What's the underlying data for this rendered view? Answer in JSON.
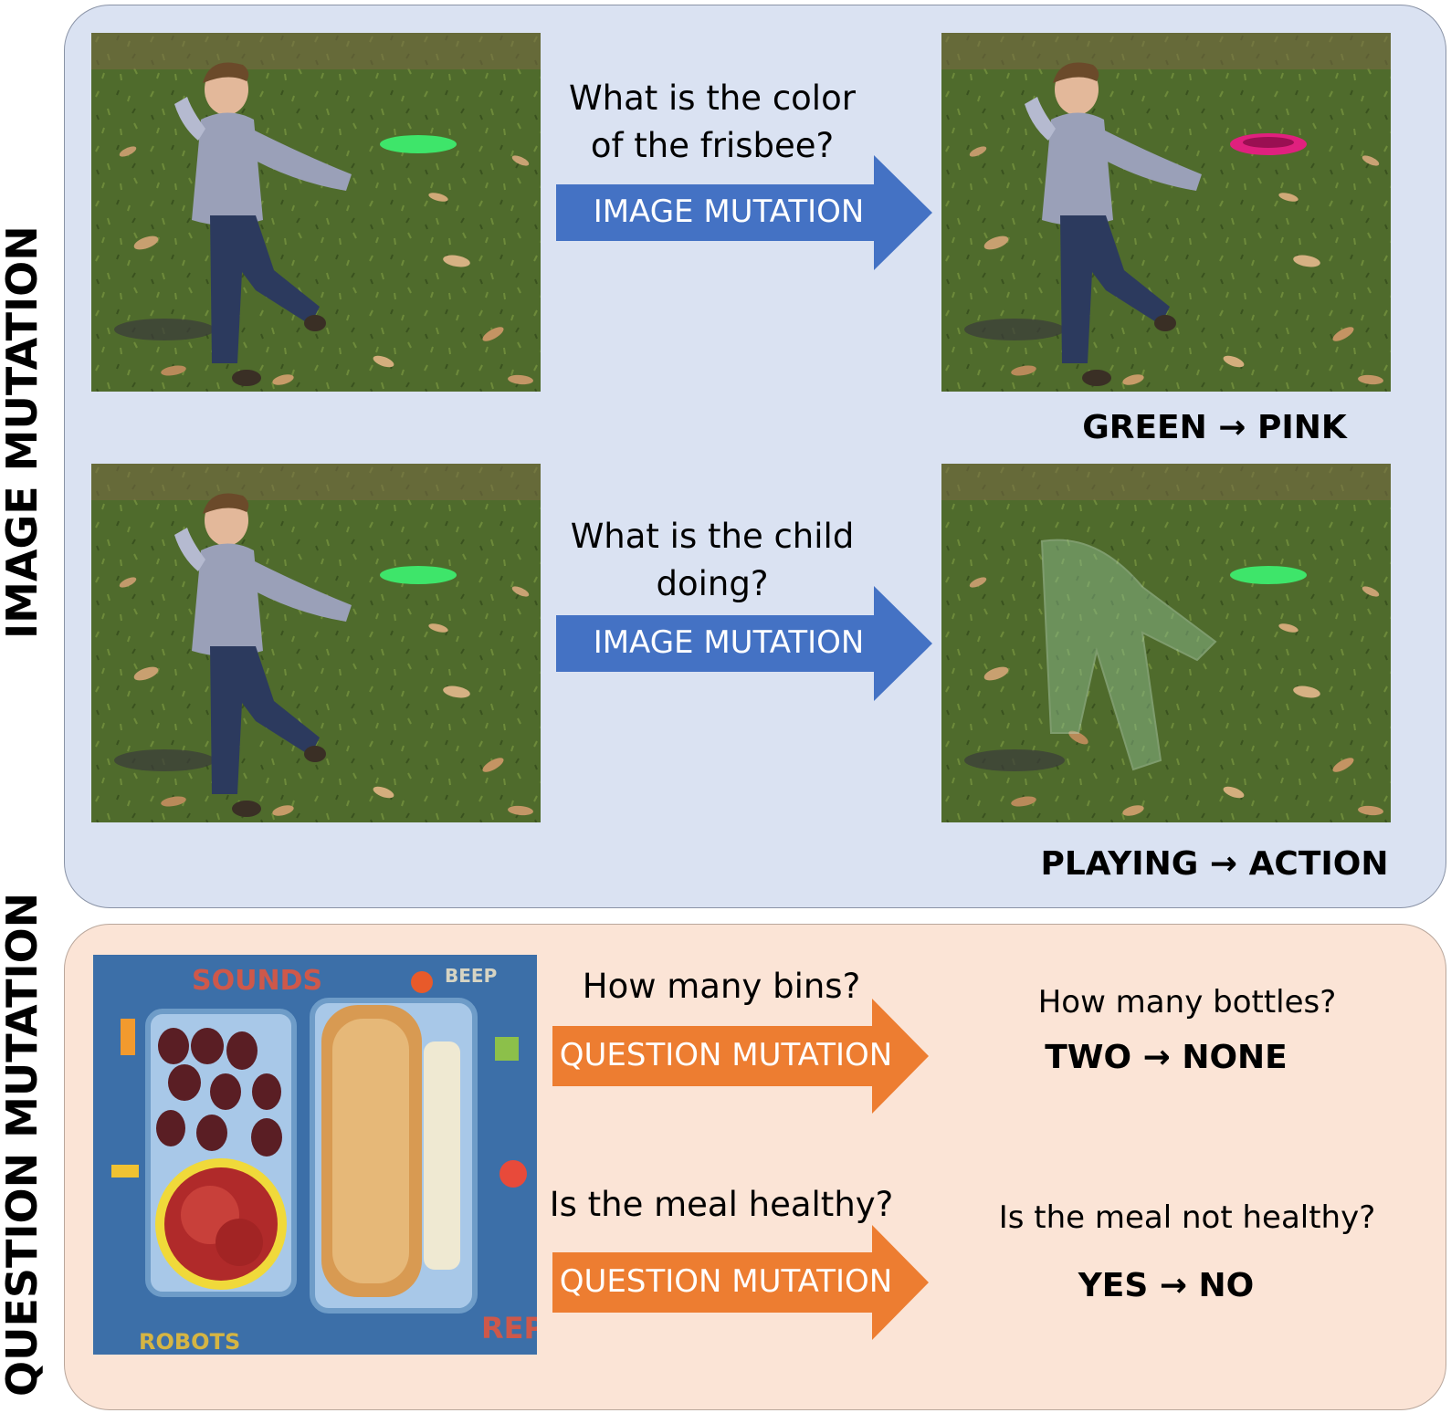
{
  "side_labels": {
    "image_mutation": "IMAGE MUTATION",
    "question_mutation": "QUESTION MUTATION"
  },
  "image_section": {
    "row1": {
      "question": "What is the color of the frisbee?",
      "arrow_label": "IMAGE MUTATION",
      "answer_change": "GREEN → PINK"
    },
    "row2": {
      "question": "What is the child doing?",
      "arrow_label": "IMAGE MUTATION",
      "answer_change": "PLAYING → ACTION"
    }
  },
  "question_section": {
    "row1": {
      "question": "How many bins?",
      "arrow_label": "QUESTION MUTATION",
      "mutated_question": "How many bottles?",
      "answer_change": "TWO → NONE"
    },
    "row2": {
      "question": "Is the meal healthy?",
      "arrow_label": "QUESTION MUTATION",
      "mutated_question": "Is the meal not healthy?",
      "answer_change": "YES → NO"
    },
    "food_photo_text": {
      "sounds": "SOUNDS",
      "beep": "BEEP",
      "robots": "ROBOTS",
      "repa": "REPA"
    }
  },
  "colors": {
    "image_panel_bg": "#dae2f2",
    "question_panel_bg": "#fbe4d6",
    "image_arrow": "#4472c4",
    "question_arrow": "#ed7d31",
    "original_frisbee": "#3ee56a",
    "mutated_frisbee": "#e0207e"
  }
}
